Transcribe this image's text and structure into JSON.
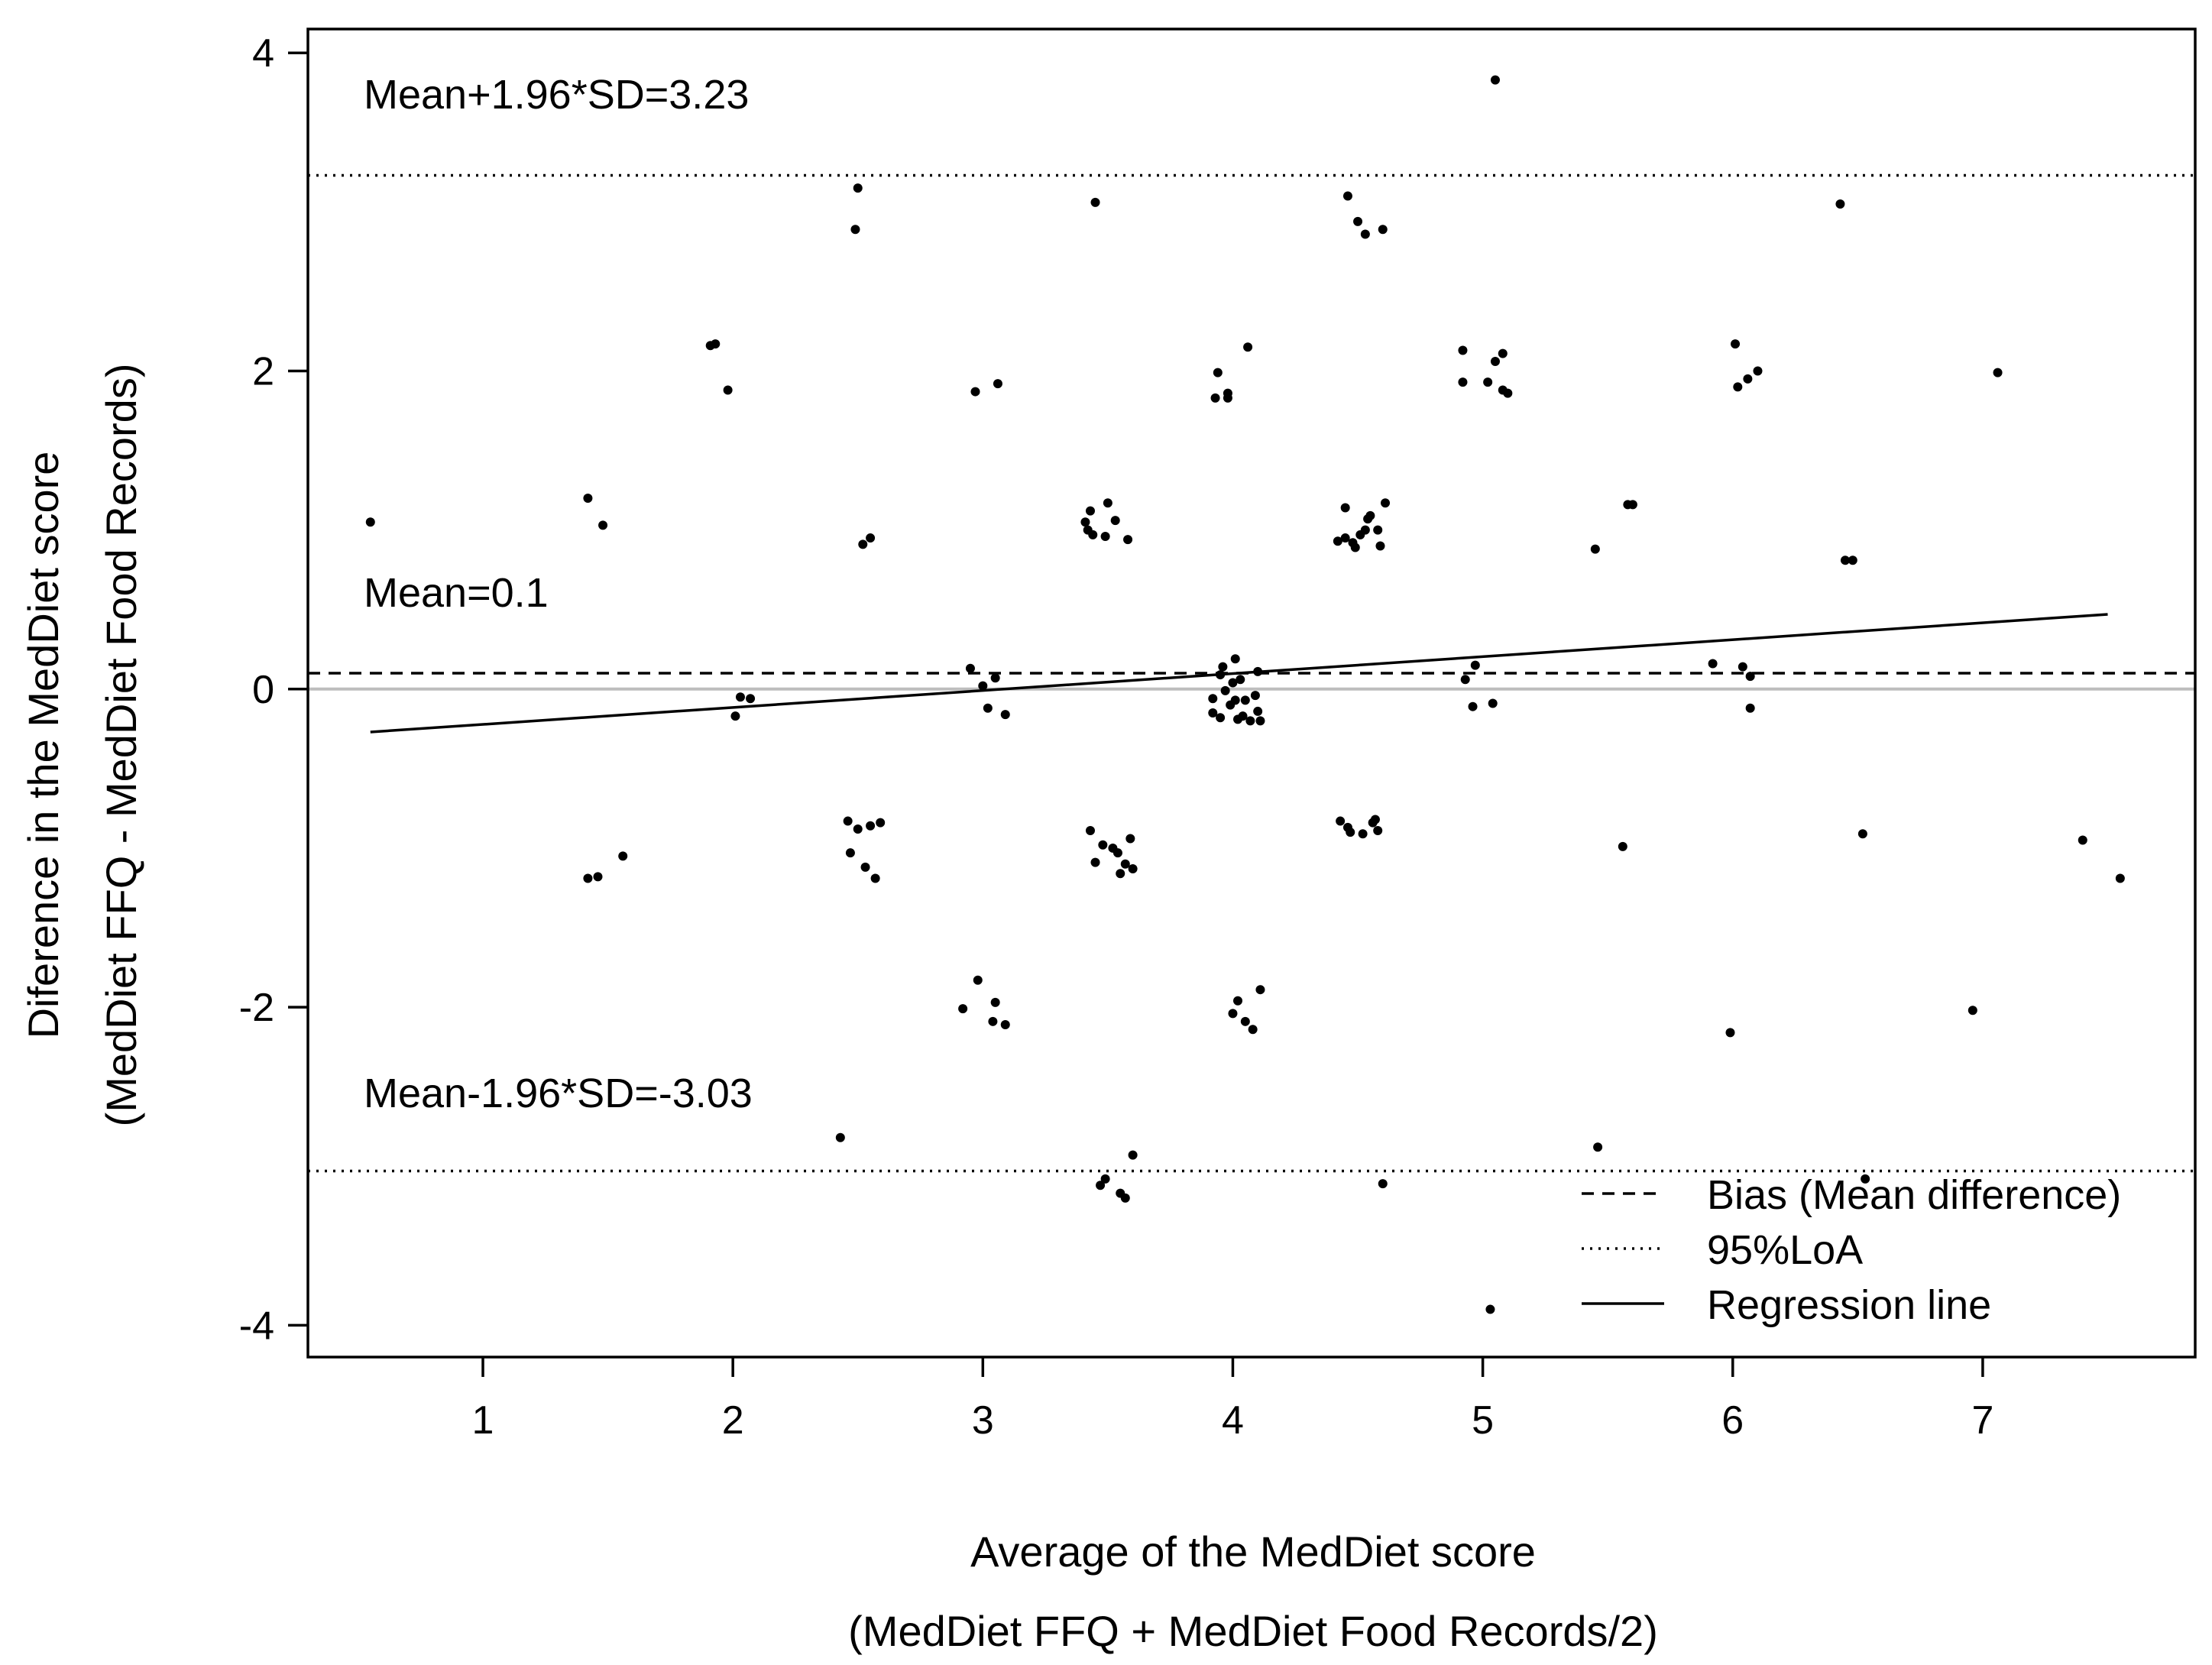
{
  "chart_data": {
    "type": "scatter",
    "title": "",
    "xlabel_lines": [
      "Average of the MedDiet score",
      "(MedDiet FFQ + MedDiet Food Records/2)"
    ],
    "ylabel_lines": [
      "Diference in the MedDiet score",
      "(MedDiet FFQ - MedDiet Food Records)"
    ],
    "xlim": [
      0.3,
      7.85
    ],
    "ylim": [
      -4.2,
      4.15
    ],
    "x_ticks": [
      1,
      2,
      3,
      4,
      5,
      6,
      7
    ],
    "y_ticks": [
      -4,
      -2,
      0,
      2,
      4
    ],
    "grid": false,
    "bias": 0.1,
    "upper_loa": 3.23,
    "lower_loa": -3.03,
    "zero_line": 0,
    "regression_line": [
      [
        0.55,
        -0.27
      ],
      [
        7.5,
        0.47
      ]
    ],
    "annotations": {
      "upper": "Mean+1.96*SD=3.23",
      "mean": "Mean=0.1",
      "lower": "Mean-1.96*SD=-3.03"
    },
    "legend": {
      "position": "bottom-right",
      "entries": [
        {
          "label": "Bias (Mean difference)",
          "style": "dashed"
        },
        {
          "label": "95%LoA",
          "style": "dotted"
        },
        {
          "label": "Regression line",
          "style": "solid"
        }
      ]
    },
    "points": [
      [
        0.55,
        1.05
      ],
      [
        1.42,
        1.2
      ],
      [
        1.48,
        1.03
      ],
      [
        1.42,
        -1.19
      ],
      [
        1.46,
        -1.18
      ],
      [
        1.56,
        -1.05
      ],
      [
        1.91,
        2.16
      ],
      [
        1.93,
        2.17
      ],
      [
        1.98,
        1.88
      ],
      [
        2.01,
        -0.17
      ],
      [
        2.03,
        -0.05
      ],
      [
        2.07,
        -0.06
      ],
      [
        2.43,
        -2.82
      ],
      [
        2.46,
        -0.83
      ],
      [
        2.47,
        -1.03
      ],
      [
        2.5,
        -0.88
      ],
      [
        2.49,
        2.89
      ],
      [
        2.5,
        3.15
      ],
      [
        2.52,
        0.91
      ],
      [
        2.55,
        0.95
      ],
      [
        2.53,
        -1.12
      ],
      [
        2.55,
        -0.86
      ],
      [
        2.57,
        -1.19
      ],
      [
        2.59,
        -0.84
      ],
      [
        2.92,
        -2.01
      ],
      [
        2.95,
        0.13
      ],
      [
        2.97,
        1.87
      ],
      [
        2.98,
        -1.83
      ],
      [
        3.0,
        0.02
      ],
      [
        3.02,
        -0.12
      ],
      [
        3.04,
        -2.09
      ],
      [
        3.05,
        -1.97
      ],
      [
        3.05,
        0.07
      ],
      [
        3.06,
        1.92
      ],
      [
        3.09,
        -2.11
      ],
      [
        3.09,
        -0.16
      ],
      [
        3.41,
        1.05
      ],
      [
        3.42,
        1.0
      ],
      [
        3.43,
        -0.89
      ],
      [
        3.43,
        1.12
      ],
      [
        3.44,
        0.97
      ],
      [
        3.45,
        -1.09
      ],
      [
        3.45,
        3.06
      ],
      [
        3.47,
        -3.12
      ],
      [
        3.48,
        -0.98
      ],
      [
        3.49,
        -3.08
      ],
      [
        3.49,
        0.96
      ],
      [
        3.5,
        1.17
      ],
      [
        3.52,
        -1.0
      ],
      [
        3.53,
        1.06
      ],
      [
        3.54,
        -1.03
      ],
      [
        3.55,
        -3.17
      ],
      [
        3.55,
        -1.16
      ],
      [
        3.57,
        -3.2
      ],
      [
        3.57,
        -1.1
      ],
      [
        3.58,
        0.94
      ],
      [
        3.59,
        -0.94
      ],
      [
        3.6,
        -1.13
      ],
      [
        3.6,
        -2.93
      ],
      [
        3.92,
        -0.06
      ],
      [
        3.92,
        -0.15
      ],
      [
        3.93,
        1.83
      ],
      [
        3.94,
        1.99
      ],
      [
        3.95,
        0.09
      ],
      [
        3.95,
        -0.18
      ],
      [
        3.96,
        0.14
      ],
      [
        3.97,
        -0.01
      ],
      [
        3.98,
        1.83
      ],
      [
        3.98,
        1.86
      ],
      [
        3.99,
        -0.1
      ],
      [
        4.0,
        0.04
      ],
      [
        4.0,
        -2.04
      ],
      [
        4.01,
        0.19
      ],
      [
        4.01,
        -0.07
      ],
      [
        4.02,
        -0.19
      ],
      [
        4.02,
        -1.96
      ],
      [
        4.03,
        0.06
      ],
      [
        4.04,
        -0.17
      ],
      [
        4.05,
        -0.07
      ],
      [
        4.05,
        -2.09
      ],
      [
        4.06,
        2.15
      ],
      [
        4.07,
        -0.2
      ],
      [
        4.08,
        -2.14
      ],
      [
        4.09,
        -0.04
      ],
      [
        4.1,
        0.11
      ],
      [
        4.1,
        -0.14
      ],
      [
        4.11,
        -1.89
      ],
      [
        4.11,
        -0.2
      ],
      [
        4.42,
        0.93
      ],
      [
        4.43,
        -0.83
      ],
      [
        4.45,
        1.14
      ],
      [
        4.45,
        0.95
      ],
      [
        4.46,
        3.1
      ],
      [
        4.46,
        -0.87
      ],
      [
        4.47,
        -0.9
      ],
      [
        4.48,
        0.92
      ],
      [
        4.49,
        0.89
      ],
      [
        4.5,
        2.94
      ],
      [
        4.51,
        0.97
      ],
      [
        4.52,
        -0.91
      ],
      [
        4.53,
        2.86
      ],
      [
        4.53,
        1.0
      ],
      [
        4.54,
        1.07
      ],
      [
        4.55,
        1.09
      ],
      [
        4.56,
        -0.84
      ],
      [
        4.57,
        -0.82
      ],
      [
        4.58,
        1.0
      ],
      [
        4.58,
        -0.89
      ],
      [
        4.59,
        0.9
      ],
      [
        4.6,
        2.89
      ],
      [
        4.6,
        -3.11
      ],
      [
        4.61,
        1.17
      ],
      [
        4.92,
        2.13
      ],
      [
        4.92,
        1.93
      ],
      [
        4.93,
        0.06
      ],
      [
        4.96,
        -0.11
      ],
      [
        4.97,
        0.15
      ],
      [
        5.02,
        1.93
      ],
      [
        5.04,
        -0.09
      ],
      [
        5.05,
        2.06
      ],
      [
        5.05,
        3.83
      ],
      [
        5.03,
        -3.9
      ],
      [
        5.08,
        1.88
      ],
      [
        5.08,
        2.11
      ],
      [
        5.1,
        1.86
      ],
      [
        5.45,
        0.88
      ],
      [
        5.46,
        -2.88
      ],
      [
        5.56,
        -0.99
      ],
      [
        5.58,
        1.16
      ],
      [
        5.6,
        1.16
      ],
      [
        5.92,
        0.16
      ],
      [
        5.99,
        -2.16
      ],
      [
        6.01,
        2.17
      ],
      [
        6.02,
        1.9
      ],
      [
        6.04,
        0.14
      ],
      [
        6.06,
        1.95
      ],
      [
        6.07,
        -0.12
      ],
      [
        6.07,
        0.08
      ],
      [
        6.1,
        2.0
      ],
      [
        6.43,
        3.05
      ],
      [
        6.45,
        0.81
      ],
      [
        6.48,
        0.81
      ],
      [
        6.52,
        -0.91
      ],
      [
        6.53,
        -3.08
      ],
      [
        6.96,
        -2.02
      ],
      [
        7.06,
        1.99
      ],
      [
        7.4,
        -0.95
      ],
      [
        7.55,
        -1.19
      ]
    ]
  }
}
